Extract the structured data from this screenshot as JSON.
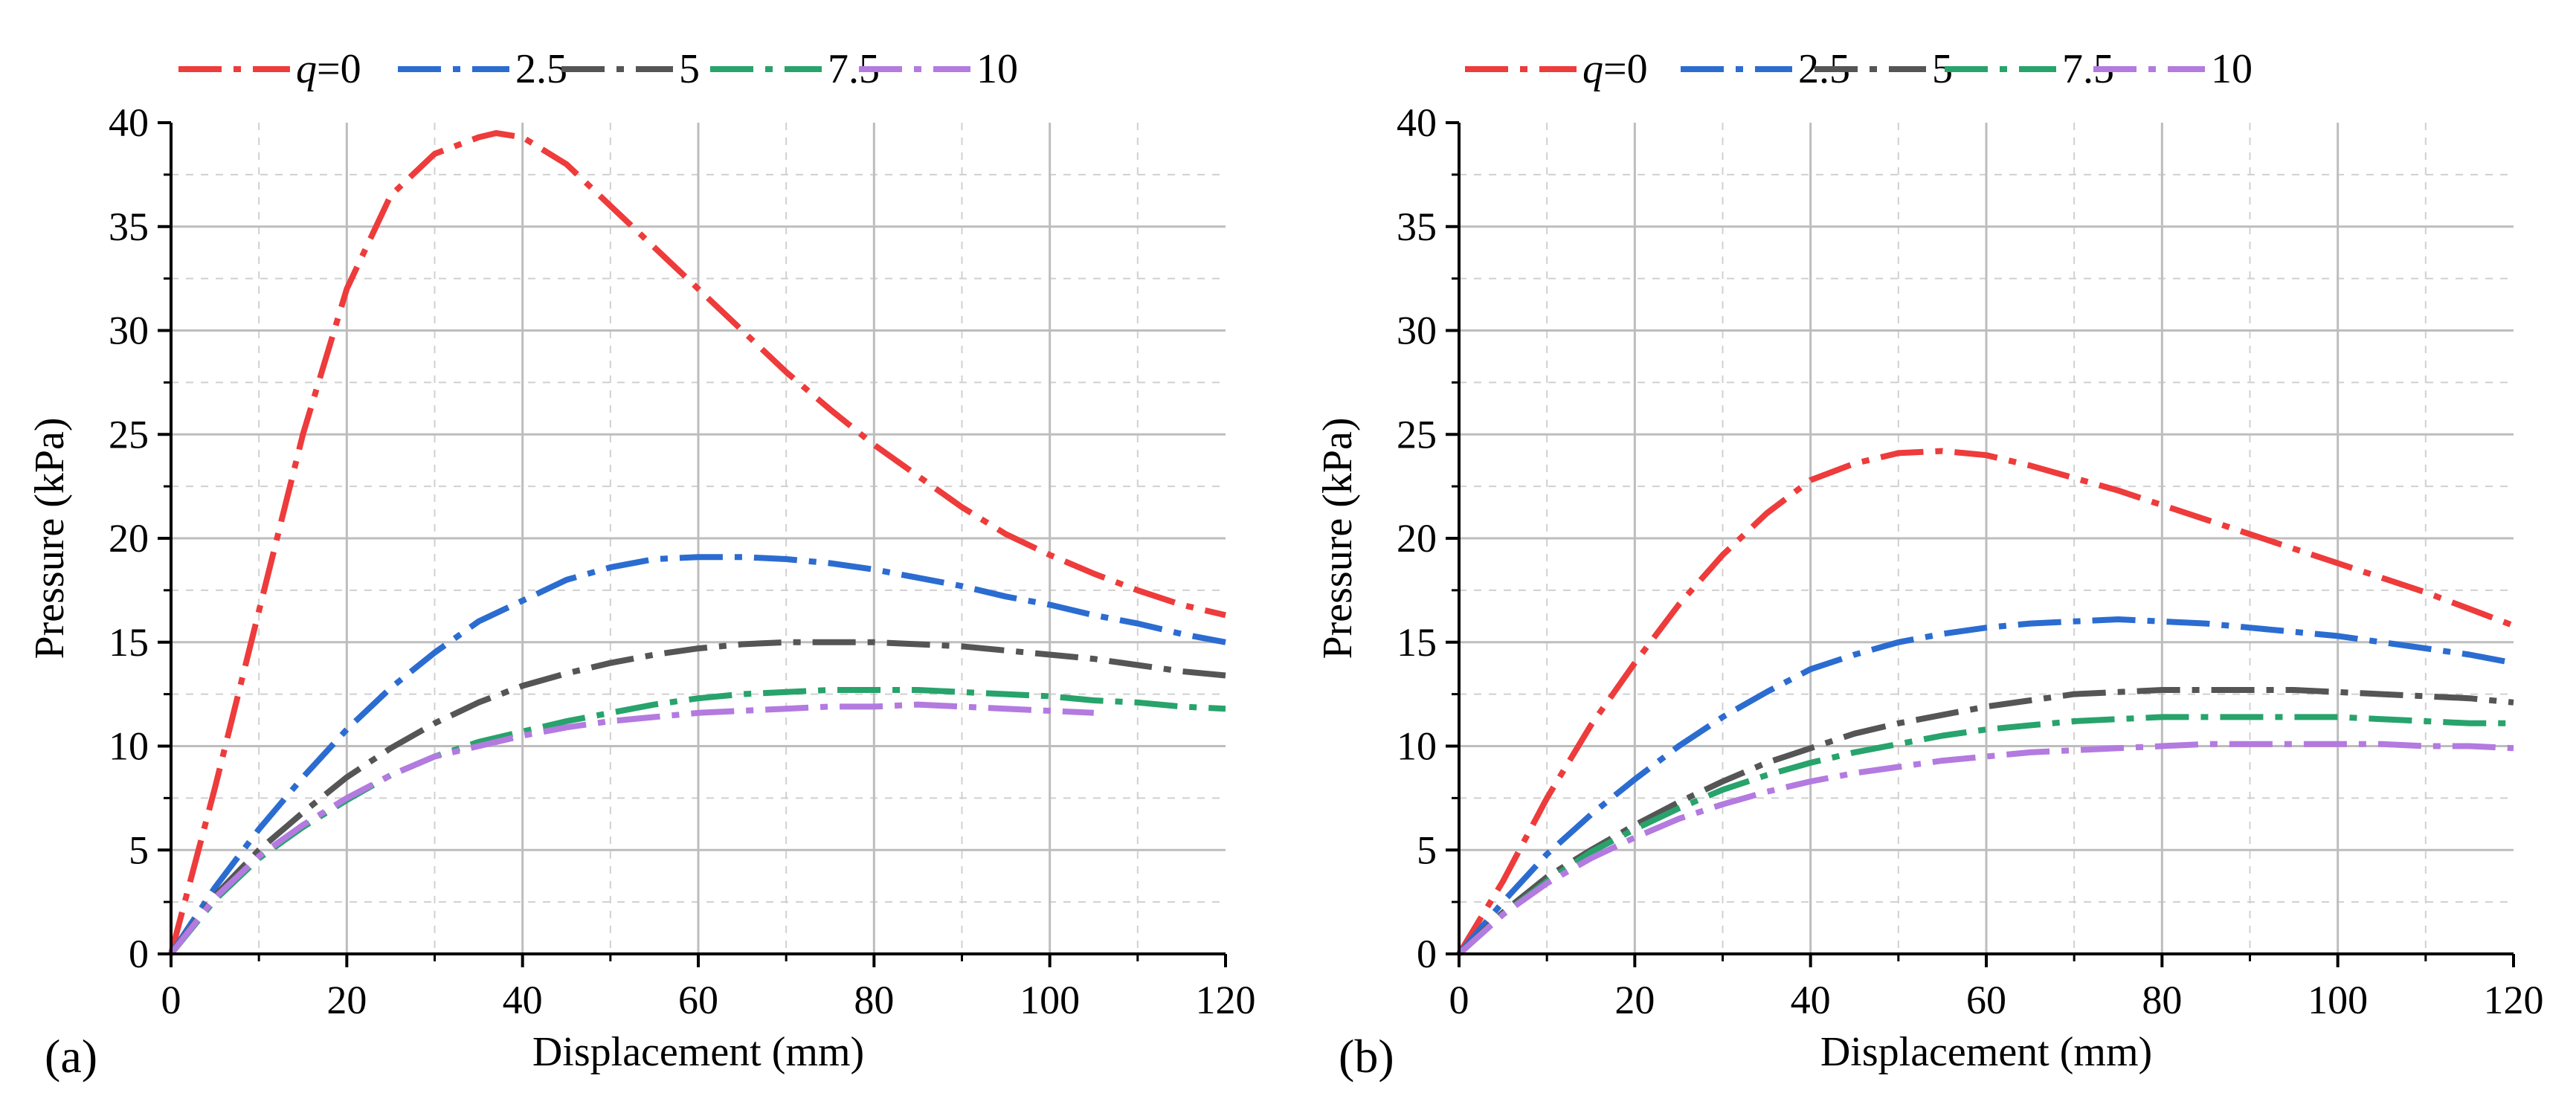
{
  "chart_data": [
    {
      "type": "line",
      "panel_label": "(a)",
      "xlabel": "Displacement (mm)",
      "ylabel": "Pressure (kPa)",
      "xlim": [
        0,
        120
      ],
      "ylim": [
        0,
        40
      ],
      "xticks": [
        "0",
        "20",
        "40",
        "60",
        "80",
        "100",
        "120"
      ],
      "yticks": [
        "0",
        "5",
        "10",
        "15",
        "20",
        "25",
        "30",
        "35",
        "40"
      ],
      "grid": true,
      "legend_position": "top",
      "legend_prefix": "q",
      "series": [
        {
          "name": "=0",
          "color": "#ee3b3b",
          "x": [
            0,
            5,
            10,
            15,
            20,
            25,
            30,
            35,
            37,
            40,
            45,
            50,
            55,
            60,
            65,
            70,
            75,
            80,
            85,
            90,
            95,
            100,
            105,
            110,
            115,
            120
          ],
          "y": [
            0,
            8,
            16.5,
            25,
            32,
            36.5,
            38.5,
            39.3,
            39.5,
            39.3,
            38,
            36,
            34,
            32,
            30,
            28,
            26.2,
            24.5,
            23,
            21.5,
            20.2,
            19.2,
            18.3,
            17.5,
            16.8,
            16.3
          ]
        },
        {
          "name": "2.5",
          "color": "#2b6cd1",
          "x": [
            0,
            5,
            10,
            15,
            20,
            25,
            30,
            35,
            40,
            45,
            50,
            55,
            60,
            65,
            70,
            75,
            80,
            85,
            90,
            95,
            100,
            105,
            110,
            115,
            120
          ],
          "y": [
            0,
            3.2,
            6.0,
            8.5,
            10.8,
            12.8,
            14.5,
            16.0,
            17.0,
            18.0,
            18.6,
            19.0,
            19.1,
            19.1,
            19.0,
            18.8,
            18.5,
            18.1,
            17.7,
            17.2,
            16.8,
            16.3,
            15.9,
            15.4,
            15.0
          ]
        },
        {
          "name": "5",
          "color": "#555555",
          "x": [
            0,
            5,
            10,
            15,
            20,
            25,
            30,
            35,
            40,
            45,
            50,
            55,
            60,
            65,
            70,
            75,
            80,
            85,
            90,
            95,
            100,
            105,
            110,
            115,
            120
          ],
          "y": [
            0,
            2.8,
            5.0,
            6.8,
            8.5,
            9.9,
            11.1,
            12.1,
            12.9,
            13.5,
            14.0,
            14.4,
            14.7,
            14.9,
            15.0,
            15.0,
            15.0,
            14.9,
            14.8,
            14.6,
            14.4,
            14.2,
            13.9,
            13.6,
            13.4
          ]
        },
        {
          "name": "7.5",
          "color": "#27a36b",
          "x": [
            0,
            5,
            10,
            15,
            20,
            25,
            30,
            35,
            40,
            45,
            50,
            55,
            60,
            65,
            70,
            75,
            80,
            85,
            90,
            95,
            100,
            105,
            110,
            115,
            120
          ],
          "y": [
            0,
            2.6,
            4.6,
            6.1,
            7.4,
            8.6,
            9.5,
            10.2,
            10.7,
            11.2,
            11.6,
            12.0,
            12.3,
            12.5,
            12.6,
            12.7,
            12.7,
            12.7,
            12.6,
            12.5,
            12.4,
            12.2,
            12.1,
            11.9,
            11.8
          ]
        },
        {
          "name": "10",
          "color": "#b37ae0",
          "x": [
            0,
            5,
            10,
            15,
            20,
            25,
            30,
            35,
            40,
            45,
            50,
            55,
            60,
            65,
            70,
            75,
            80,
            85,
            90,
            95,
            100,
            105
          ],
          "y": [
            0,
            2.7,
            4.7,
            6.2,
            7.5,
            8.6,
            9.5,
            10.0,
            10.5,
            10.9,
            11.2,
            11.4,
            11.6,
            11.7,
            11.8,
            11.9,
            11.9,
            12.0,
            11.9,
            11.8,
            11.7,
            11.6
          ]
        }
      ]
    },
    {
      "type": "line",
      "panel_label": "(b)",
      "xlabel": "Displacement (mm)",
      "ylabel": "Pressure (kPa)",
      "xlim": [
        0,
        120
      ],
      "ylim": [
        0,
        40
      ],
      "xticks": [
        "0",
        "20",
        "40",
        "60",
        "80",
        "100",
        "120"
      ],
      "yticks": [
        "0",
        "5",
        "10",
        "15",
        "20",
        "25",
        "30",
        "35",
        "40"
      ],
      "grid": true,
      "legend_position": "top",
      "legend_prefix": "q",
      "series": [
        {
          "name": "=0",
          "color": "#ee3b3b",
          "x": [
            0,
            5,
            10,
            15,
            20,
            25,
            30,
            35,
            40,
            45,
            50,
            55,
            60,
            65,
            70,
            75,
            80,
            85,
            90,
            95,
            100,
            105,
            110,
            115,
            120
          ],
          "y": [
            0,
            3.5,
            7.5,
            11.0,
            14.0,
            16.8,
            19.2,
            21.2,
            22.8,
            23.6,
            24.1,
            24.2,
            24.0,
            23.5,
            22.9,
            22.3,
            21.6,
            20.9,
            20.2,
            19.5,
            18.8,
            18.1,
            17.4,
            16.6,
            15.8
          ]
        },
        {
          "name": "2.5",
          "color": "#2b6cd1",
          "x": [
            0,
            5,
            10,
            15,
            20,
            25,
            30,
            35,
            40,
            45,
            50,
            55,
            60,
            65,
            70,
            75,
            80,
            85,
            90,
            95,
            100,
            105,
            110,
            115,
            120
          ],
          "y": [
            0,
            2.5,
            4.8,
            6.7,
            8.4,
            10.0,
            11.4,
            12.6,
            13.7,
            14.4,
            15.0,
            15.4,
            15.7,
            15.9,
            16.0,
            16.1,
            16.0,
            15.9,
            15.7,
            15.5,
            15.3,
            15.0,
            14.7,
            14.4,
            14.0
          ]
        },
        {
          "name": "5",
          "color": "#555555",
          "x": [
            0,
            5,
            10,
            15,
            20,
            25,
            30,
            35,
            40,
            45,
            50,
            55,
            60,
            65,
            70,
            75,
            80,
            85,
            90,
            95,
            100,
            105,
            110,
            115,
            120
          ],
          "y": [
            0,
            2.0,
            3.7,
            5.0,
            6.2,
            7.3,
            8.3,
            9.2,
            9.9,
            10.6,
            11.1,
            11.5,
            11.9,
            12.2,
            12.5,
            12.6,
            12.7,
            12.7,
            12.7,
            12.7,
            12.6,
            12.5,
            12.4,
            12.3,
            12.1
          ]
        },
        {
          "name": "7.5",
          "color": "#27a36b",
          "x": [
            0,
            5,
            10,
            15,
            20,
            25,
            30,
            35,
            40,
            45,
            50,
            55,
            60,
            65,
            70,
            75,
            80,
            85,
            90,
            95,
            100,
            105,
            110,
            115,
            120
          ],
          "y": [
            0,
            1.9,
            3.5,
            4.9,
            6.0,
            7.0,
            7.9,
            8.6,
            9.2,
            9.7,
            10.1,
            10.5,
            10.8,
            11.0,
            11.2,
            11.3,
            11.4,
            11.4,
            11.4,
            11.4,
            11.4,
            11.3,
            11.2,
            11.1,
            11.1
          ]
        },
        {
          "name": "10",
          "color": "#b37ae0",
          "x": [
            0,
            5,
            10,
            15,
            20,
            25,
            30,
            35,
            40,
            45,
            50,
            55,
            60,
            65,
            70,
            75,
            80,
            85,
            90,
            95,
            100,
            105,
            110,
            115,
            120
          ],
          "y": [
            0,
            1.9,
            3.4,
            4.6,
            5.6,
            6.5,
            7.2,
            7.8,
            8.3,
            8.7,
            9.0,
            9.3,
            9.5,
            9.7,
            9.8,
            9.9,
            10.0,
            10.1,
            10.1,
            10.1,
            10.1,
            10.1,
            10.0,
            10.0,
            9.9
          ]
        }
      ]
    }
  ]
}
